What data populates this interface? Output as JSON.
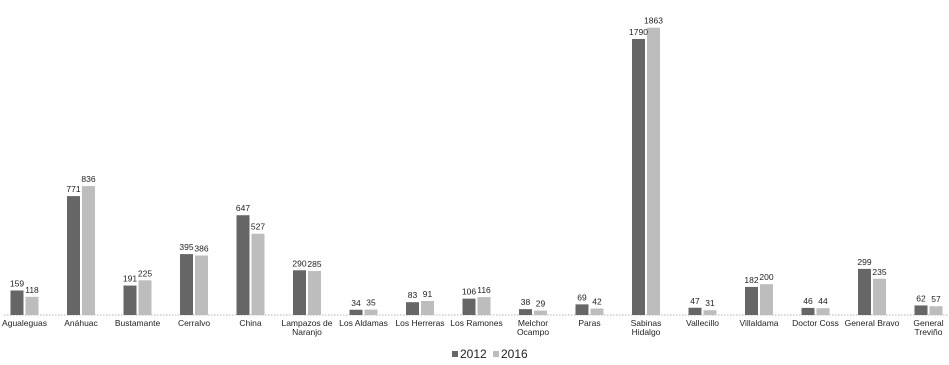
{
  "chart_data": {
    "type": "bar",
    "categories": [
      [
        "Agualeguas"
      ],
      [
        "Anáhuac"
      ],
      [
        "Bustamante"
      ],
      [
        "Cerralvo"
      ],
      [
        "China"
      ],
      [
        "Lampazos de",
        "Naranjo"
      ],
      [
        "Los Aldamas"
      ],
      [
        "Los Herreras"
      ],
      [
        "Los Ramones"
      ],
      [
        "Melchor",
        "Ocampo"
      ],
      [
        "Paras"
      ],
      [
        "Sabinas",
        "Hidalgo"
      ],
      [
        "Vallecillo"
      ],
      [
        "Villaldama"
      ],
      [
        "Doctor Coss"
      ],
      [
        "General Bravo"
      ],
      [
        "General",
        "Treviño"
      ]
    ],
    "series": [
      {
        "name": "2012",
        "color": "#666666",
        "values": [
          159,
          771,
          191,
          395,
          647,
          290,
          34,
          83,
          106,
          38,
          69,
          1790,
          47,
          182,
          46,
          299,
          62
        ]
      },
      {
        "name": "2016",
        "color": "#bdbdbd",
        "values": [
          118,
          836,
          225,
          386,
          527,
          285,
          35,
          91,
          116,
          29,
          42,
          1863,
          31,
          200,
          44,
          235,
          57
        ]
      }
    ],
    "ylim": [
      0,
      1900
    ],
    "grid": false,
    "legend": "bottom-center",
    "title": "",
    "xlabel": "",
    "ylabel": ""
  }
}
